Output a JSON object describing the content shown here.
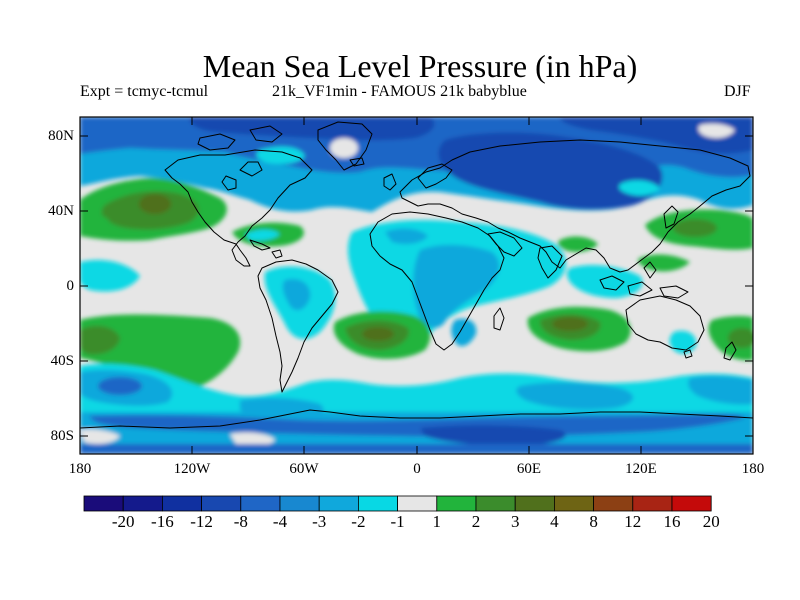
{
  "title": "Mean Sea Level Pressure (in hPa)",
  "subtitle_left": "Expt = tcmyc-tcmul",
  "subtitle_center": "21k_VF1min - FAMOUS 21k babyblue",
  "subtitle_right": "DJF",
  "map": {
    "projection": "cylindrical-equidistant",
    "lon_range": [
      -180,
      180
    ],
    "lat_range": [
      -90,
      90
    ],
    "y_ticks": [
      "80N",
      "40N",
      "0",
      "40S",
      "80S"
    ],
    "x_ticks": [
      "180",
      "120W",
      "60W",
      "0",
      "60E",
      "120E",
      "180"
    ]
  },
  "colorbar": {
    "labels": [
      "-20",
      "-16",
      "-12",
      "-8",
      "-4",
      "-3",
      "-2",
      "-1",
      "1",
      "2",
      "3",
      "4",
      "8",
      "12",
      "16",
      "20"
    ],
    "colors": [
      "#1a0c7a",
      "#141a8c",
      "#1030a0",
      "#1848b0",
      "#1f66c6",
      "#1888d0",
      "#10a8dc",
      "#08d8e4",
      "#e6e6e6",
      "#22b43c",
      "#3b8c2c",
      "#50701c",
      "#6e6414",
      "#8c4014",
      "#a82414",
      "#c40a0a"
    ]
  }
}
